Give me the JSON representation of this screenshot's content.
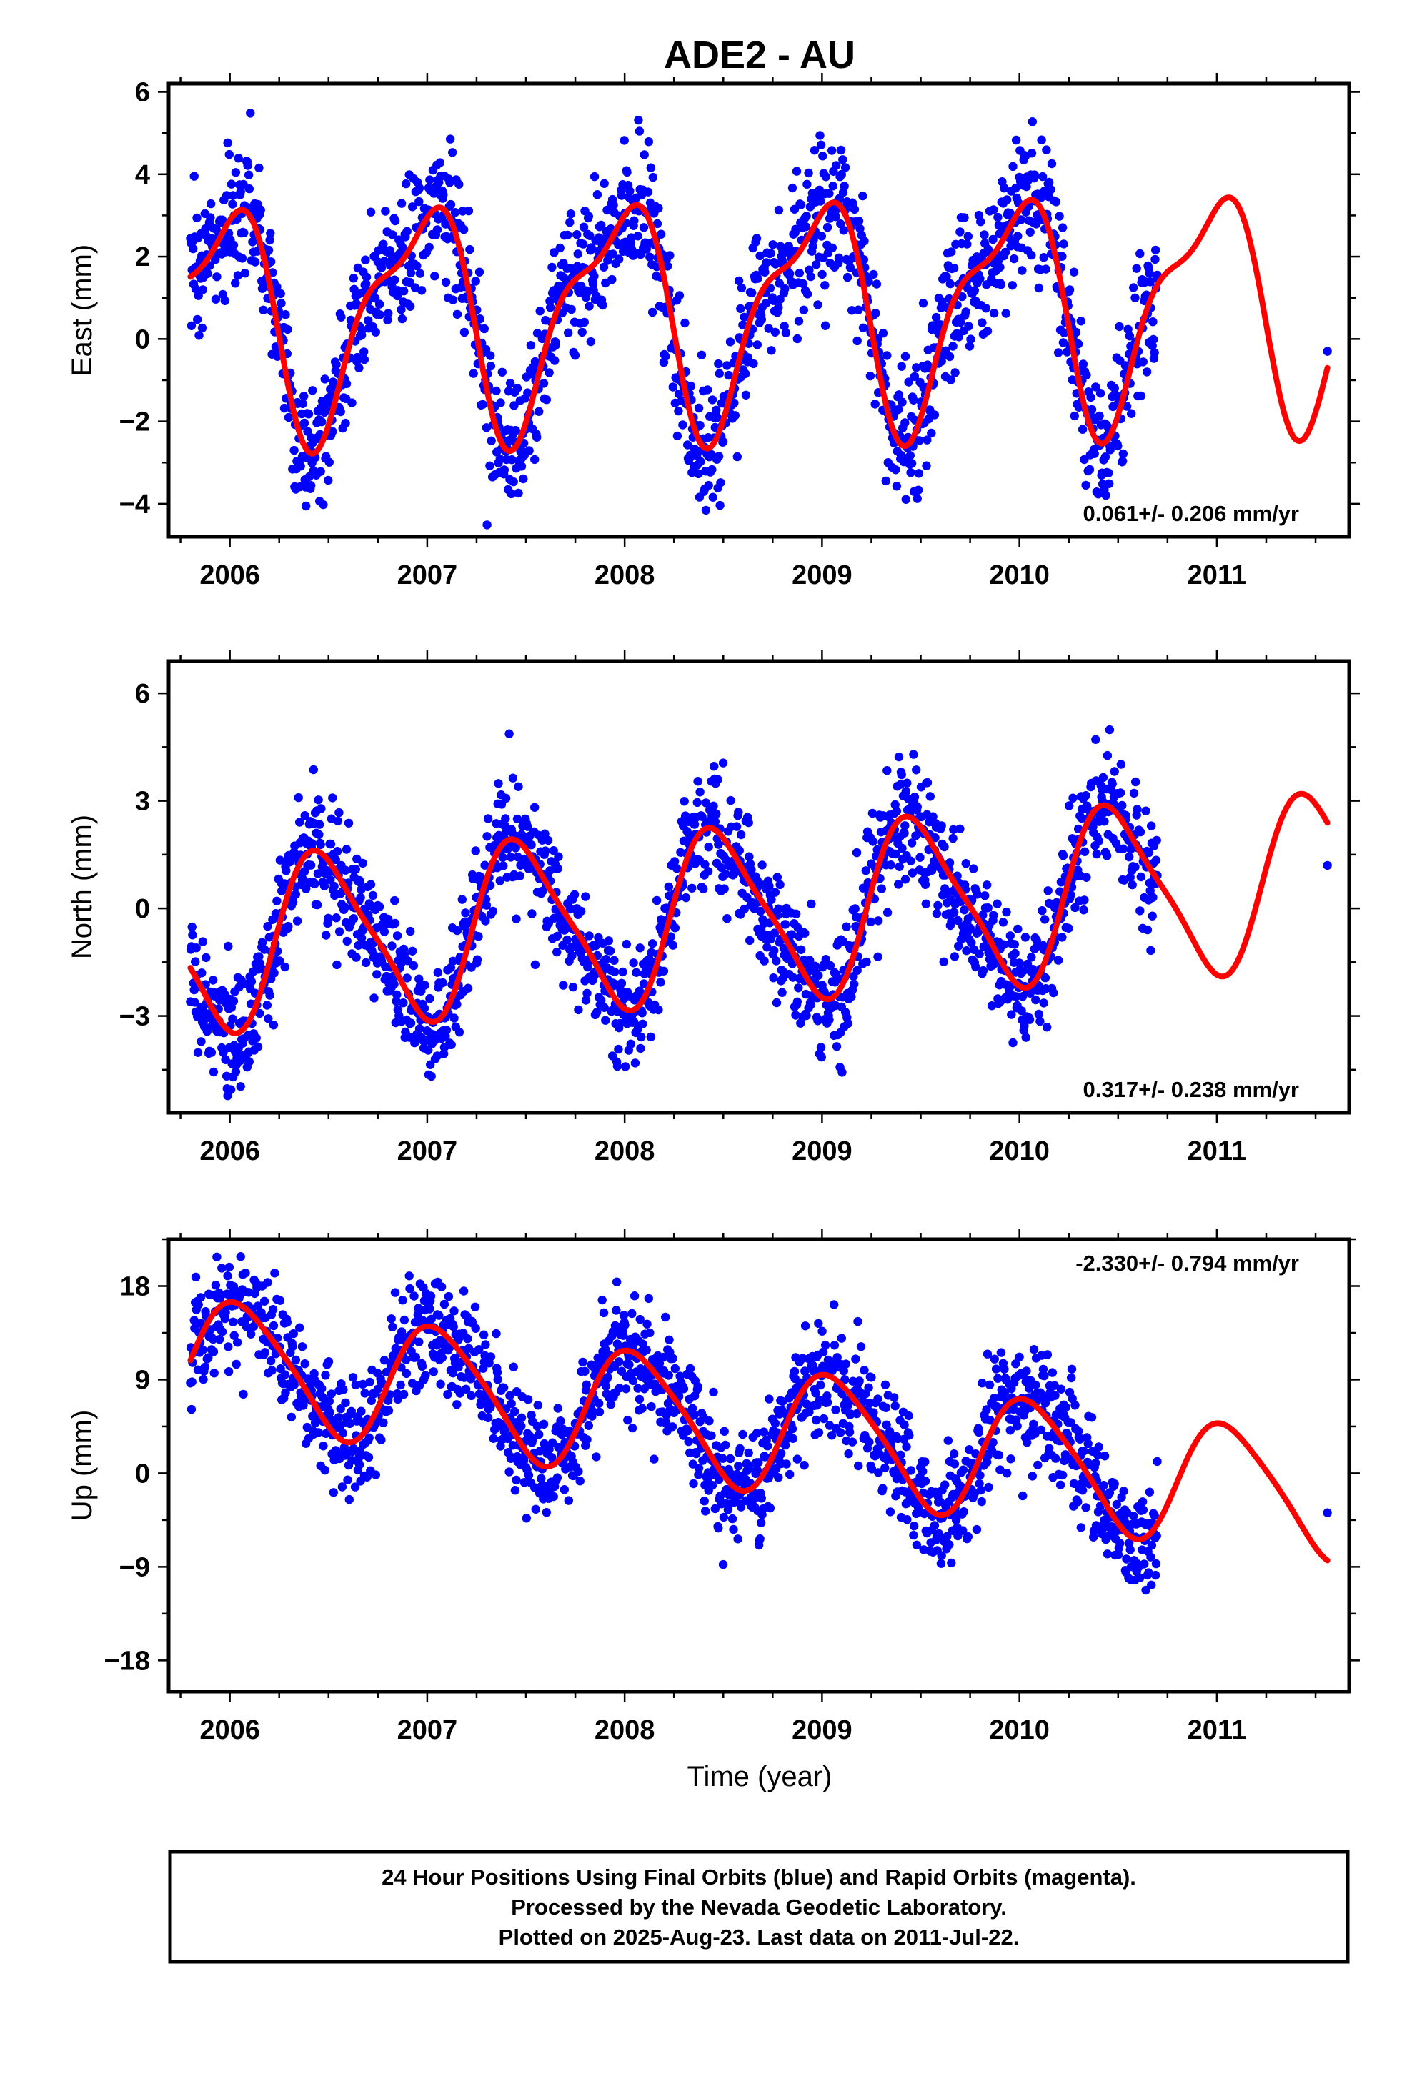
{
  "chart_data": {
    "title": "ADE2 - AU",
    "x_label": "Time (year)",
    "x_ticks": [
      2006,
      2007,
      2008,
      2009,
      2010,
      2011
    ],
    "x_range": [
      2005.69,
      2011.67
    ],
    "data_start": 2005.8,
    "last_data": 2011.56,
    "colors": {
      "data": "#0000ff",
      "model": "#ff0000",
      "frame": "#000000"
    },
    "panels": [
      {
        "id": "east",
        "type": "scatter",
        "y_label": "East (mm)",
        "y_ticks": [
          6,
          4,
          2,
          0,
          -2,
          -4
        ],
        "y_tick_labels": [
          "6",
          "4",
          "2",
          "0",
          "−2",
          "−4"
        ],
        "y_range": [
          -4.8,
          6.2
        ],
        "rate_text": "0.061+/- 0.206 mm/yr",
        "rate_position": "bottom-right",
        "model": {
          "offset": 0.66,
          "rate": 0.061,
          "annual_cos": 2.5,
          "annual_sin": -0.65,
          "semiannual_cos": -0.15,
          "semiannual_sin": 0.9
        },
        "scatter_sigma": 0.85,
        "last_point": {
          "x": 2011.56,
          "y": -0.3
        }
      },
      {
        "id": "north",
        "type": "scatter",
        "y_label": "North (mm)",
        "y_ticks": [
          6,
          3,
          0,
          -3
        ],
        "y_tick_labels": [
          "6",
          "3",
          "0",
          "−3"
        ],
        "y_range": [
          -5.7,
          6.9
        ],
        "rate_text": "0.317+/- 0.238 mm/yr",
        "rate_position": "bottom-right",
        "model": {
          "offset": -0.35,
          "rate": 0.317,
          "annual_cos": -2.3,
          "annual_sin": 0.3,
          "semiannual_cos": -0.15,
          "semiannual_sin": -0.45
        },
        "scatter_sigma": 0.85,
        "last_point": {
          "x": 2011.56,
          "y": 1.2
        }
      },
      {
        "id": "up",
        "type": "scatter",
        "y_label": "Up (mm)",
        "y_ticks": [
          18,
          9,
          0,
          -9,
          -18
        ],
        "y_tick_labels": [
          "18",
          "9",
          "0",
          "−9",
          "−18"
        ],
        "y_range": [
          -21,
          22.5
        ],
        "rate_text": "-2.330+/- 0.794 mm/yr",
        "rate_position": "top-right",
        "model": {
          "offset": 6.0,
          "rate": -2.33,
          "annual_cos": 5.4,
          "annual_sin": 2.2,
          "semiannual_cos": 0.4,
          "semiannual_sin": -0.8
        },
        "scatter_sigma": 2.8,
        "last_point": {
          "x": 2011.56,
          "y": -3.8
        }
      }
    ]
  },
  "caption": {
    "lines": [
      "24 Hour Positions Using Final Orbits (blue) and Rapid Orbits (magenta).",
      "Processed by the Nevada Geodetic Laboratory.",
      "Plotted on 2025-Aug-23. Last data on 2011-Jul-22."
    ]
  }
}
